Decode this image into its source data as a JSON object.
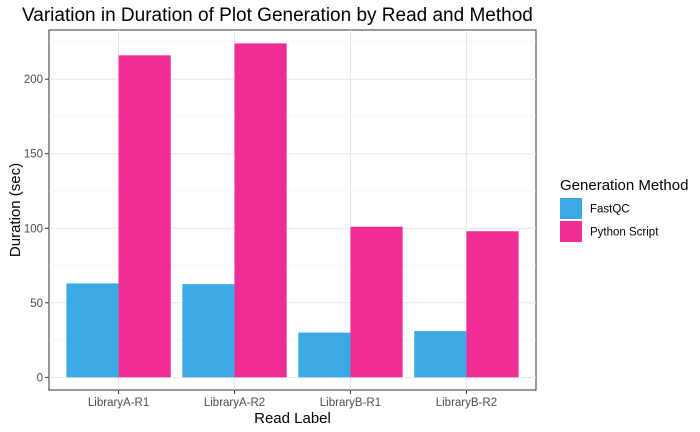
{
  "chart_data": {
    "type": "bar",
    "title": "Variation in Duration of Plot Generation by Read and Method",
    "xlabel": "Read Label",
    "ylabel": "Duration (sec)",
    "categories": [
      "LibraryA-R1",
      "LibraryA-R2",
      "LibraryB-R1",
      "LibraryB-R2"
    ],
    "series": [
      {
        "name": "FastQC",
        "color": "#3BA9E4",
        "values": [
          63,
          62.5,
          30,
          31
        ]
      },
      {
        "name": "Python Script",
        "color": "#F02C96",
        "values": [
          216,
          224,
          101,
          98
        ]
      }
    ],
    "ylim": [
      -8.5,
      233
    ],
    "yticks": [
      0,
      50,
      100,
      150,
      200
    ],
    "grid": true,
    "legend": {
      "title": "Generation Method",
      "position": "right"
    }
  }
}
